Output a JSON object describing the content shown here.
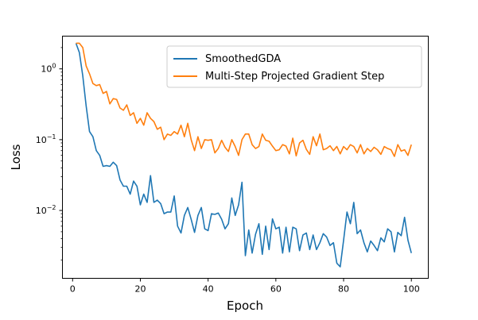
{
  "chart_data": {
    "type": "line",
    "xlabel": "Epoch",
    "ylabel": "Loss",
    "yscale": "log",
    "xlim": [
      -3,
      105
    ],
    "ylim": [
      0.0011,
      2.9
    ],
    "x_ticks": [
      0,
      20,
      40,
      60,
      80,
      100
    ],
    "y_ticks": [
      {
        "value": 1,
        "label": "10^0"
      },
      {
        "value": 0.1,
        "label": "10^-1"
      },
      {
        "value": 0.01,
        "label": "10^-2"
      }
    ],
    "grid": false,
    "legend_position": "upper right",
    "series": [
      {
        "name": "SmoothedGDA",
        "color": "#1f77b4",
        "x": [
          1,
          2,
          3,
          4,
          5,
          6,
          7,
          8,
          9,
          10,
          11,
          12,
          13,
          14,
          15,
          16,
          17,
          18,
          19,
          20,
          21,
          22,
          23,
          24,
          25,
          26,
          27,
          28,
          29,
          30,
          31,
          32,
          33,
          34,
          35,
          36,
          37,
          38,
          39,
          40,
          41,
          42,
          43,
          44,
          45,
          46,
          47,
          48,
          49,
          50,
          51,
          52,
          53,
          54,
          55,
          56,
          57,
          58,
          59,
          60,
          61,
          62,
          63,
          64,
          65,
          66,
          67,
          68,
          69,
          70,
          71,
          72,
          73,
          74,
          75,
          76,
          77,
          78,
          79,
          80,
          81,
          82,
          83,
          84,
          85,
          86,
          87,
          88,
          89,
          90,
          91,
          92,
          93,
          94,
          95,
          96,
          97,
          98,
          99,
          100
        ],
        "y": [
          2.3,
          1.7,
          0.8,
          0.3,
          0.13,
          0.11,
          0.07,
          0.06,
          0.042,
          0.043,
          0.042,
          0.048,
          0.043,
          0.027,
          0.022,
          0.022,
          0.017,
          0.026,
          0.022,
          0.012,
          0.017,
          0.013,
          0.031,
          0.013,
          0.014,
          0.0125,
          0.009,
          0.0095,
          0.0095,
          0.016,
          0.006,
          0.0048,
          0.0085,
          0.011,
          0.0075,
          0.0049,
          0.0085,
          0.011,
          0.0055,
          0.0052,
          0.009,
          0.0088,
          0.0092,
          0.0075,
          0.0055,
          0.0065,
          0.015,
          0.0085,
          0.012,
          0.025,
          0.0023,
          0.0053,
          0.0025,
          0.0046,
          0.0065,
          0.0024,
          0.006,
          0.0028,
          0.0076,
          0.0055,
          0.0058,
          0.0025,
          0.0058,
          0.0026,
          0.0058,
          0.0055,
          0.0027,
          0.0045,
          0.0048,
          0.0028,
          0.0045,
          0.0028,
          0.0035,
          0.0047,
          0.0042,
          0.0032,
          0.0035,
          0.0018,
          0.0016,
          0.0038,
          0.0095,
          0.0065,
          0.013,
          0.0047,
          0.0053,
          0.0035,
          0.0026,
          0.0037,
          0.0032,
          0.0027,
          0.0041,
          0.0036,
          0.0055,
          0.005,
          0.0026,
          0.0049,
          0.0044,
          0.008,
          0.0038,
          0.0025
        ]
      },
      {
        "name": "Multi-Step Projected Gradient Step",
        "color": "#ff7f0e",
        "x": [
          1,
          2,
          3,
          4,
          5,
          6,
          7,
          8,
          9,
          10,
          11,
          12,
          13,
          14,
          15,
          16,
          17,
          18,
          19,
          20,
          21,
          22,
          23,
          24,
          25,
          26,
          27,
          28,
          29,
          30,
          31,
          32,
          33,
          34,
          35,
          36,
          37,
          38,
          39,
          40,
          41,
          42,
          43,
          44,
          45,
          46,
          47,
          48,
          49,
          50,
          51,
          52,
          53,
          54,
          55,
          56,
          57,
          58,
          59,
          60,
          61,
          62,
          63,
          64,
          65,
          66,
          67,
          68,
          69,
          70,
          71,
          72,
          73,
          74,
          75,
          76,
          77,
          78,
          79,
          80,
          81,
          82,
          83,
          84,
          85,
          86,
          87,
          88,
          89,
          90,
          91,
          92,
          93,
          94,
          95,
          96,
          97,
          98,
          99,
          100
        ],
        "y": [
          2.3,
          2.3,
          2.0,
          1.1,
          0.85,
          0.62,
          0.58,
          0.6,
          0.45,
          0.48,
          0.32,
          0.38,
          0.37,
          0.28,
          0.26,
          0.31,
          0.22,
          0.24,
          0.17,
          0.2,
          0.16,
          0.24,
          0.2,
          0.18,
          0.14,
          0.15,
          0.1,
          0.12,
          0.115,
          0.13,
          0.12,
          0.16,
          0.11,
          0.17,
          0.1,
          0.07,
          0.11,
          0.075,
          0.1,
          0.098,
          0.1,
          0.065,
          0.075,
          0.098,
          0.078,
          0.068,
          0.1,
          0.08,
          0.06,
          0.1,
          0.12,
          0.12,
          0.085,
          0.075,
          0.08,
          0.12,
          0.098,
          0.095,
          0.081,
          0.07,
          0.072,
          0.085,
          0.081,
          0.063,
          0.105,
          0.059,
          0.09,
          0.098,
          0.073,
          0.062,
          0.11,
          0.082,
          0.12,
          0.072,
          0.075,
          0.082,
          0.07,
          0.08,
          0.063,
          0.08,
          0.072,
          0.085,
          0.08,
          0.065,
          0.085,
          0.063,
          0.075,
          0.068,
          0.078,
          0.072,
          0.062,
          0.08,
          0.075,
          0.072,
          0.058,
          0.085,
          0.069,
          0.072,
          0.06,
          0.085
        ]
      }
    ]
  }
}
